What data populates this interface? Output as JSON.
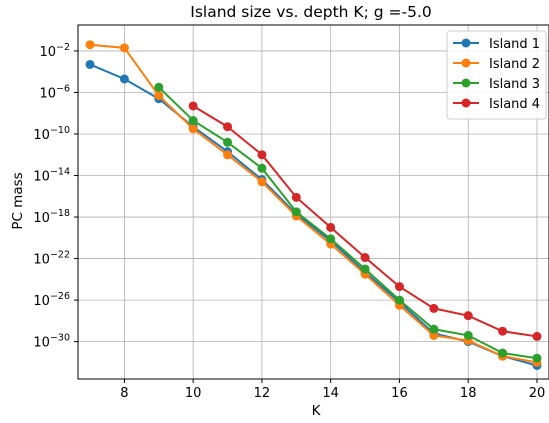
{
  "chart_data": {
    "type": "line",
    "title": "Island size vs. depth K; g =-5.0",
    "xlabel": "K",
    "ylabel": "PC mass",
    "xlim": [
      6.65,
      20.35
    ],
    "ylim_log10": [
      -33.6,
      0.5
    ],
    "yscale": "log",
    "grid": true,
    "legend_position": "top-right",
    "xticks": [
      8,
      10,
      12,
      14,
      16,
      18,
      20
    ],
    "xtick_labels": [
      "8",
      "10",
      "12",
      "14",
      "16",
      "18",
      "20"
    ],
    "yticks_log10": [
      -2,
      -6,
      -10,
      -14,
      -18,
      -22,
      -26,
      -30
    ],
    "ytick_labels": [
      {
        "base": "10",
        "exp": "−2"
      },
      {
        "base": "10",
        "exp": "−6"
      },
      {
        "base": "10",
        "exp": "−10"
      },
      {
        "base": "10",
        "exp": "−14"
      },
      {
        "base": "10",
        "exp": "−18"
      },
      {
        "base": "10",
        "exp": "−22"
      },
      {
        "base": "10",
        "exp": "−26"
      },
      {
        "base": "10",
        "exp": "−30"
      }
    ],
    "series": [
      {
        "name": "Island 1",
        "color": "#1f77b4",
        "x": [
          7,
          8,
          9,
          10,
          11,
          12,
          13,
          14,
          15,
          16,
          17,
          18,
          19,
          20
        ],
        "log10_y": [
          -3.3,
          -4.7,
          -6.6,
          -9.3,
          -11.7,
          -14.4,
          -17.7,
          -20.3,
          -23.3,
          -26.2,
          -29.2,
          -30.0,
          -31.4,
          -32.3
        ]
      },
      {
        "name": "Island 2",
        "color": "#ff7f0e",
        "x": [
          7,
          8,
          9,
          10,
          11,
          12,
          13,
          14,
          15,
          16,
          17,
          18,
          19,
          20
        ],
        "log10_y": [
          -1.4,
          -1.7,
          -6.3,
          -9.5,
          -12.0,
          -14.6,
          -17.9,
          -20.6,
          -23.5,
          -26.5,
          -29.4,
          -29.9,
          -31.4,
          -32.0
        ]
      },
      {
        "name": "Island 3",
        "color": "#2ca02c",
        "x": [
          9,
          10,
          11,
          12,
          13,
          14,
          15,
          16,
          17,
          18,
          19,
          20
        ],
        "log10_y": [
          -5.5,
          -8.7,
          -10.8,
          -13.3,
          -17.5,
          -20.1,
          -23.0,
          -26.0,
          -28.8,
          -29.4,
          -31.1,
          -31.6
        ]
      },
      {
        "name": "Island 4",
        "color": "#d62728",
        "x": [
          10,
          11,
          12,
          13,
          14,
          15,
          16,
          17,
          18,
          19,
          20
        ],
        "log10_y": [
          -7.3,
          -9.3,
          -12.0,
          -16.1,
          -19.0,
          -21.9,
          -24.7,
          -26.8,
          -27.5,
          -29.0,
          -29.5
        ]
      }
    ]
  }
}
